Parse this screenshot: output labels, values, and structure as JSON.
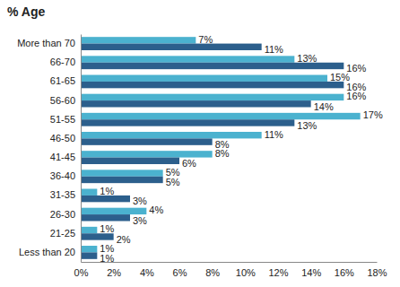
{
  "chart_data": {
    "type": "bar",
    "title": "% Age",
    "orientation": "horizontal",
    "categories": [
      "More than 70",
      "66-70",
      "61-65",
      "56-60",
      "51-55",
      "46-50",
      "41-45",
      "36-40",
      "31-35",
      "26-30",
      "21-25",
      "Less than 20"
    ],
    "series": [
      {
        "color": "#4bb2cf",
        "values": [
          7,
          13,
          15,
          16,
          17,
          11,
          8,
          5,
          1,
          4,
          1,
          1
        ],
        "value_labels": [
          "7%",
          "13%",
          "15%",
          "16%",
          "17%",
          "11%",
          "8%",
          "5%",
          "1%",
          "4%",
          "1%",
          "1%"
        ]
      },
      {
        "color": "#2c5f8c",
        "values": [
          11,
          16,
          16,
          14,
          13,
          8,
          6,
          5,
          3,
          3,
          2,
          1
        ],
        "value_labels": [
          "11%",
          "16%",
          "16%",
          "14%",
          "13%",
          "8%",
          "6%",
          "5%",
          "3%",
          "3%",
          "2%",
          "1%"
        ]
      }
    ],
    "xlim": [
      0,
      18
    ],
    "xticks": [
      {
        "value": 0,
        "label": "0%"
      },
      {
        "value": 2,
        "label": "2%"
      },
      {
        "value": 4,
        "label": "4%"
      },
      {
        "value": 6,
        "label": "6%"
      },
      {
        "value": 8,
        "label": "8%"
      },
      {
        "value": 10,
        "label": "10%"
      },
      {
        "value": 12,
        "label": "12%"
      },
      {
        "value": 14,
        "label": "14%"
      },
      {
        "value": 16,
        "label": "16%"
      },
      {
        "value": 18,
        "label": "18%"
      }
    ],
    "data_labels": true,
    "grid": false
  }
}
